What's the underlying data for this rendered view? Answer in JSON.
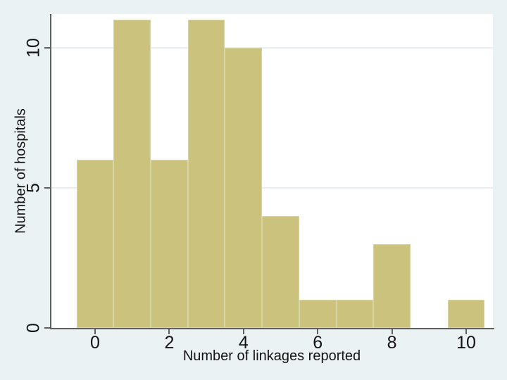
{
  "chart_data": {
    "type": "bar",
    "subtype": "histogram",
    "title": "",
    "xlabel": "Number of linkages reported",
    "ylabel": "Number of hospitals",
    "x_ticks": [
      0,
      2,
      4,
      6,
      8,
      10
    ],
    "y_ticks": [
      0,
      5,
      10
    ],
    "xlim": [
      -0.7,
      10.75
    ],
    "ylim": [
      0,
      11.2
    ],
    "bin_width": 1,
    "bars": [
      {
        "x": 0,
        "count": 6
      },
      {
        "x": 1,
        "count": 11
      },
      {
        "x": 2,
        "count": 6
      },
      {
        "x": 3,
        "count": 11
      },
      {
        "x": 4,
        "count": 10
      },
      {
        "x": 5,
        "count": 4
      },
      {
        "x": 6,
        "count": 1
      },
      {
        "x": 7,
        "count": 1
      },
      {
        "x": 8,
        "count": 3
      },
      {
        "x": 10,
        "count": 1
      }
    ],
    "grid": "horizontal gridlines at 5 and 10",
    "legend": "none",
    "colors": {
      "bar_fill": "#cac27d",
      "bar_border": "#d9d4a4",
      "background": "#eaf2f3",
      "plot_background": "#ffffff",
      "gridline": "#e6eef1",
      "axis": "#5f5f5f",
      "text": "#141414"
    }
  }
}
